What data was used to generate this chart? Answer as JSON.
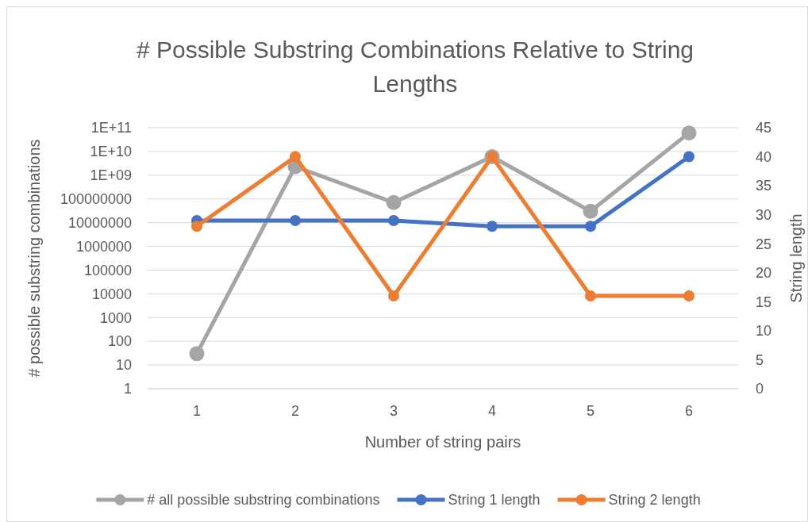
{
  "chart_data": {
    "type": "line",
    "title": "# Possible Substring Combinations Relative to String Lengths",
    "xlabel": "Number of string pairs",
    "ylabel": "# possible substring combinations",
    "y2label": "String length",
    "categories": [
      "1",
      "2",
      "3",
      "4",
      "5",
      "6"
    ],
    "series": [
      {
        "name": "# all possible substring combinations",
        "color": "#a5a5a5",
        "values": [
          30,
          2300000000,
          70000000,
          6000000000,
          30000000,
          60000000000
        ]
      },
      {
        "name": "String 1 length",
        "color": "#4472c4",
        "axis": "y2",
        "values": [
          29,
          29,
          29,
          28,
          28,
          40
        ]
      },
      {
        "name": "String 2 length",
        "color": "#ed7d31",
        "axis": "y2",
        "values": [
          28,
          40,
          16,
          40,
          16,
          16
        ]
      }
    ],
    "log": "y",
    "ylim": [
      1,
      100000000000
    ],
    "yticks": [
      1,
      10,
      100,
      1000,
      10000,
      100000,
      1000000,
      10000000,
      100000000,
      {
        "value": 1000000000,
        "label": "1E+09"
      },
      {
        "value": 10000000000,
        "label": "1E+10"
      },
      {
        "value": 100000000000,
        "label": "1E+11"
      }
    ],
    "y2lim": [
      0,
      45
    ],
    "y2ticks": [
      0,
      5,
      10,
      15,
      20,
      25,
      30,
      35,
      40,
      45
    ],
    "grid": "y",
    "legend": "bottom",
    "marker": "circle",
    "line_style": "solid"
  }
}
